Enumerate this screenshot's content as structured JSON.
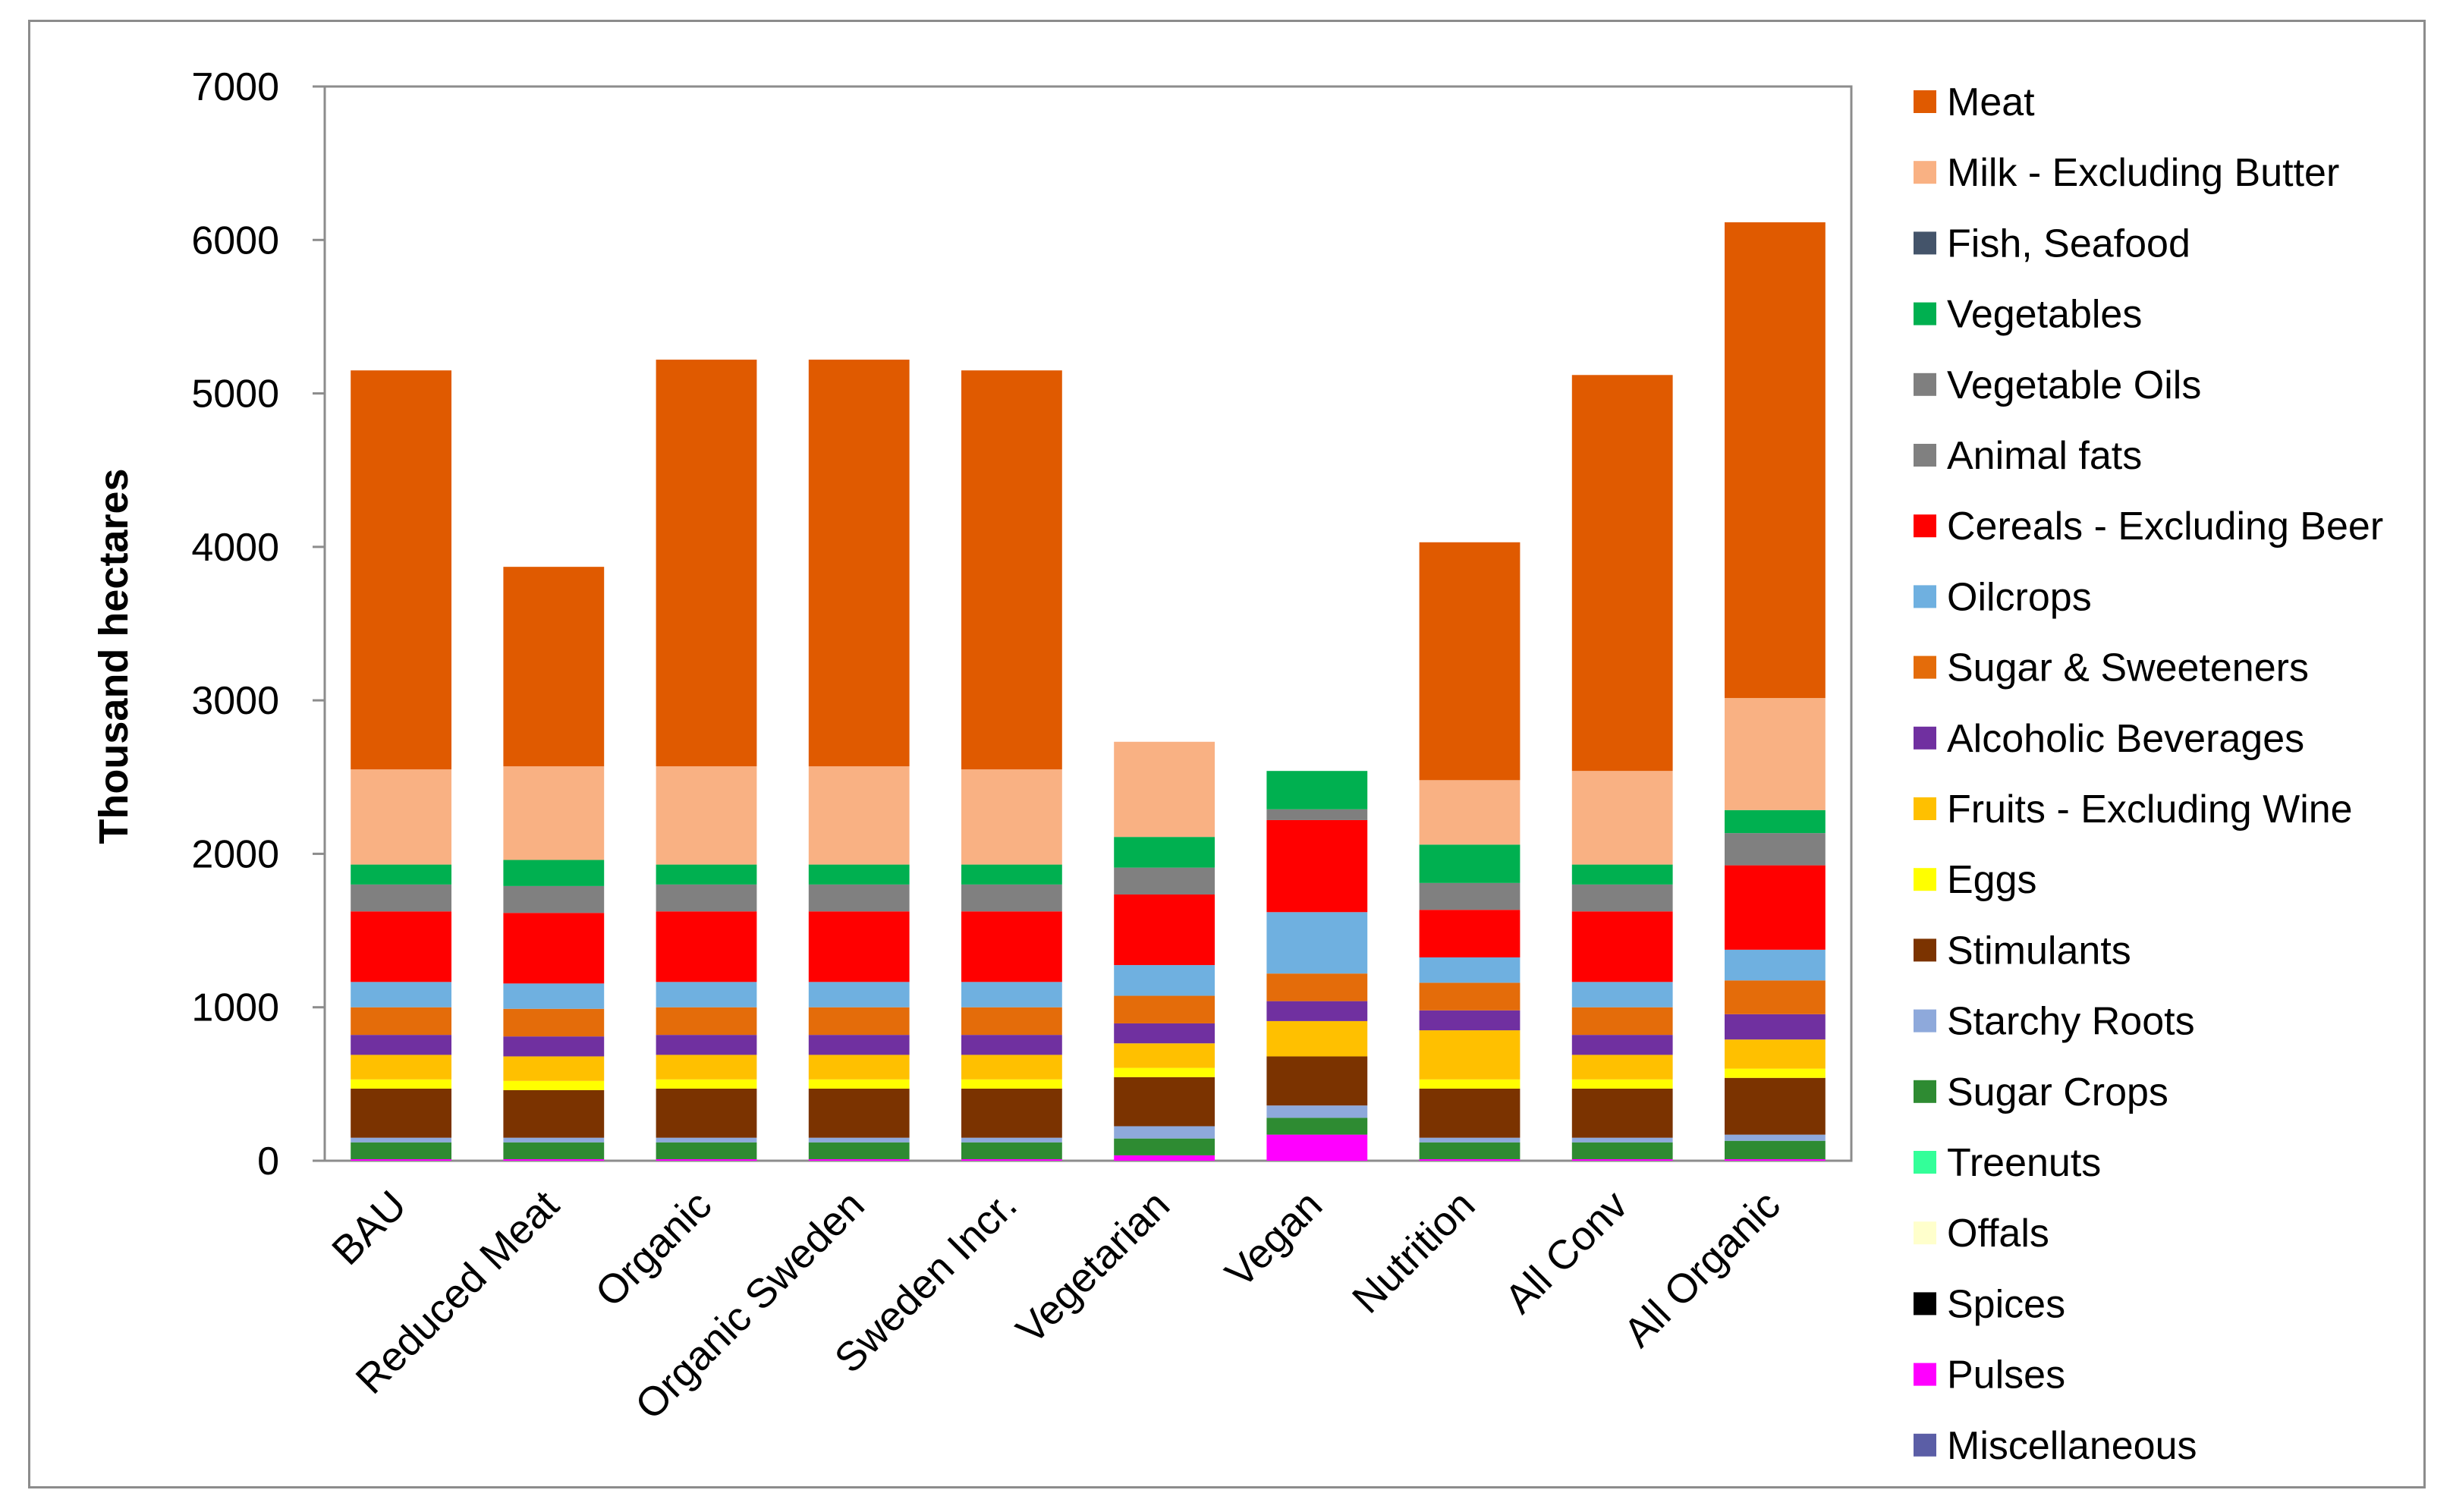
{
  "chart_data": {
    "type": "bar",
    "stacked": true,
    "title": "",
    "xlabel": "",
    "ylabel": "Thousand hectares",
    "ylim": [
      0,
      7000
    ],
    "yticks": [
      0,
      1000,
      2000,
      3000,
      4000,
      5000,
      6000,
      7000
    ],
    "grid": false,
    "legend_position": "right",
    "categories": [
      "BAU",
      "Reduced Meat",
      "Organic",
      "Organic Sweden",
      "Sweden Incr.",
      "Vegetarian",
      "Vegan",
      "Nutrition",
      "All Conv",
      "All Organic"
    ],
    "series": [
      {
        "name": "Meat",
        "color": "#E05A00",
        "values": [
          2600,
          1300,
          2650,
          2650,
          2600,
          0,
          0,
          1550,
          2580,
          3100
        ]
      },
      {
        "name": "Milk - Excluding Butter",
        "color": "#F9B183",
        "values": [
          620,
          610,
          640,
          640,
          620,
          620,
          0,
          420,
          610,
          730
        ]
      },
      {
        "name": "Fish, Seafood",
        "color": "#44546A",
        "values": [
          0,
          0,
          0,
          0,
          0,
          0,
          0,
          0,
          0,
          0
        ]
      },
      {
        "name": "Vegetables",
        "color": "#00B050",
        "values": [
          130,
          170,
          130,
          130,
          130,
          200,
          250,
          250,
          130,
          150
        ]
      },
      {
        "name": "Vegetable Oils",
        "color": "#7F7F7F",
        "values": [
          0,
          0,
          0,
          0,
          0,
          0,
          70,
          0,
          0,
          0
        ]
      },
      {
        "name": "Animal fats",
        "color": "#808080",
        "values": [
          175,
          175,
          175,
          175,
          175,
          175,
          0,
          175,
          175,
          210
        ]
      },
      {
        "name": "Cereals - Excluding Beer",
        "color": "#FF0000",
        "values": [
          460,
          460,
          460,
          460,
          460,
          460,
          600,
          310,
          460,
          550
        ]
      },
      {
        "name": "Oilcrops",
        "color": "#6FB0E0",
        "values": [
          165,
          165,
          165,
          165,
          165,
          200,
          400,
          165,
          165,
          200
        ]
      },
      {
        "name": "Sugar & Sweeteners",
        "color": "#E46C0A",
        "values": [
          180,
          180,
          180,
          180,
          180,
          180,
          180,
          180,
          180,
          220
        ]
      },
      {
        "name": "Alcoholic Beverages",
        "color": "#7030A0",
        "values": [
          130,
          130,
          130,
          130,
          130,
          130,
          130,
          130,
          130,
          165
        ]
      },
      {
        "name": "Fruits - Excluding Wine",
        "color": "#FFC000",
        "values": [
          160,
          160,
          160,
          160,
          160,
          160,
          230,
          320,
          160,
          190
        ]
      },
      {
        "name": "Eggs",
        "color": "#FFFF00",
        "values": [
          60,
          60,
          60,
          60,
          60,
          60,
          0,
          60,
          60,
          60
        ]
      },
      {
        "name": "Stimulants",
        "color": "#7B3300",
        "values": [
          320,
          310,
          320,
          320,
          320,
          320,
          320,
          320,
          320,
          370
        ]
      },
      {
        "name": "Starchy Roots",
        "color": "#8EA9DB",
        "values": [
          30,
          30,
          30,
          30,
          30,
          80,
          80,
          30,
          30,
          40
        ]
      },
      {
        "name": "Sugar Crops",
        "color": "#2E8B32",
        "values": [
          110,
          110,
          110,
          110,
          110,
          110,
          110,
          110,
          110,
          120
        ]
      },
      {
        "name": "Treenuts",
        "color": "#33FF99",
        "values": [
          0,
          0,
          0,
          0,
          0,
          0,
          0,
          0,
          0,
          0
        ]
      },
      {
        "name": "Offals",
        "color": "#FFFFCC",
        "values": [
          0,
          0,
          0,
          0,
          0,
          0,
          0,
          0,
          0,
          0
        ]
      },
      {
        "name": "Spices",
        "color": "#000000",
        "values": [
          0,
          0,
          0,
          0,
          0,
          0,
          0,
          0,
          0,
          0
        ]
      },
      {
        "name": "Pulses",
        "color": "#FF00FF",
        "values": [
          10,
          10,
          10,
          10,
          10,
          35,
          170,
          10,
          10,
          10
        ]
      },
      {
        "name": "Miscellaneous",
        "color": "#5B5EA6",
        "values": [
          0,
          0,
          0,
          0,
          0,
          0,
          0,
          0,
          0,
          0
        ]
      }
    ]
  }
}
